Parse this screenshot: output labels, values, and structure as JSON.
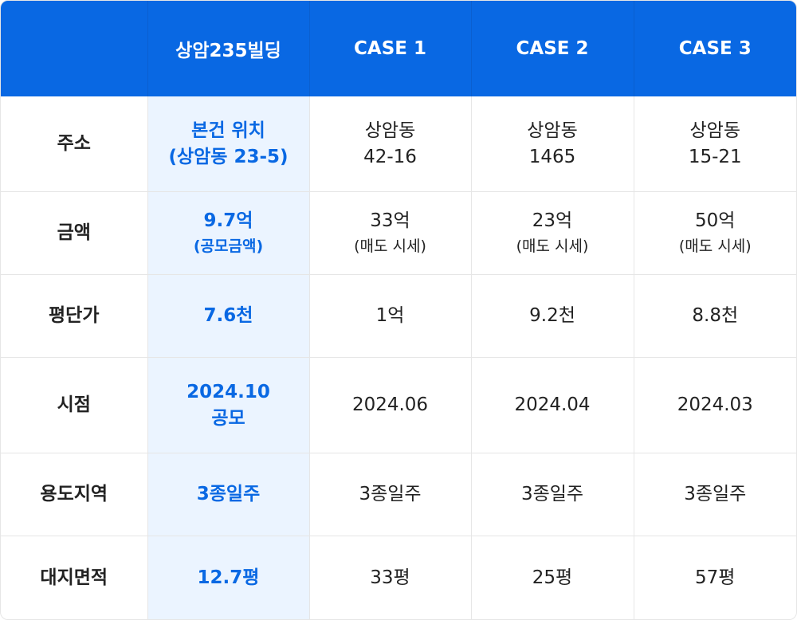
{
  "header": {
    "corner": "",
    "col1": "상암235빌딩",
    "col2": "CASE 1",
    "col3": "CASE 2",
    "col4": "CASE 3"
  },
  "rows": [
    {
      "label": "주소",
      "subject": {
        "line1": "본건 위치",
        "line2": "(상암동 23-5)"
      },
      "case1": {
        "line1": "상암동",
        "line2": "42-16"
      },
      "case2": {
        "line1": "상암동",
        "line2": "1465"
      },
      "case3": {
        "line1": "상암동",
        "line2": "15-21"
      }
    },
    {
      "label": "금액",
      "subject": {
        "main": "9.7억",
        "sub": "(공모금액)"
      },
      "case1": {
        "main": "33억",
        "sub": "(매도 시세)"
      },
      "case2": {
        "main": "23억",
        "sub": "(매도 시세)"
      },
      "case3": {
        "main": "50억",
        "sub": "(매도 시세)"
      }
    },
    {
      "label": "평단가",
      "subject": "7.6천",
      "case1": "1억",
      "case2": "9.2천",
      "case3": "8.8천"
    },
    {
      "label": "시점",
      "subject": {
        "line1": "2024.10",
        "line2": "공모"
      },
      "case1": "2024.06",
      "case2": "2024.04",
      "case3": "2024.03"
    },
    {
      "label": "용도지역",
      "subject": "3종일주",
      "case1": "3종일주",
      "case2": "3종일주",
      "case3": "3종일주"
    },
    {
      "label": "대지면적",
      "subject": "12.7평",
      "case1": "33평",
      "case2": "25평",
      "case3": "57평"
    }
  ],
  "colors": {
    "header_bg": "#0968e3",
    "highlight_bg": "#ebf4ff",
    "highlight_text": "#0968e3",
    "border": "#e6e6e6"
  }
}
